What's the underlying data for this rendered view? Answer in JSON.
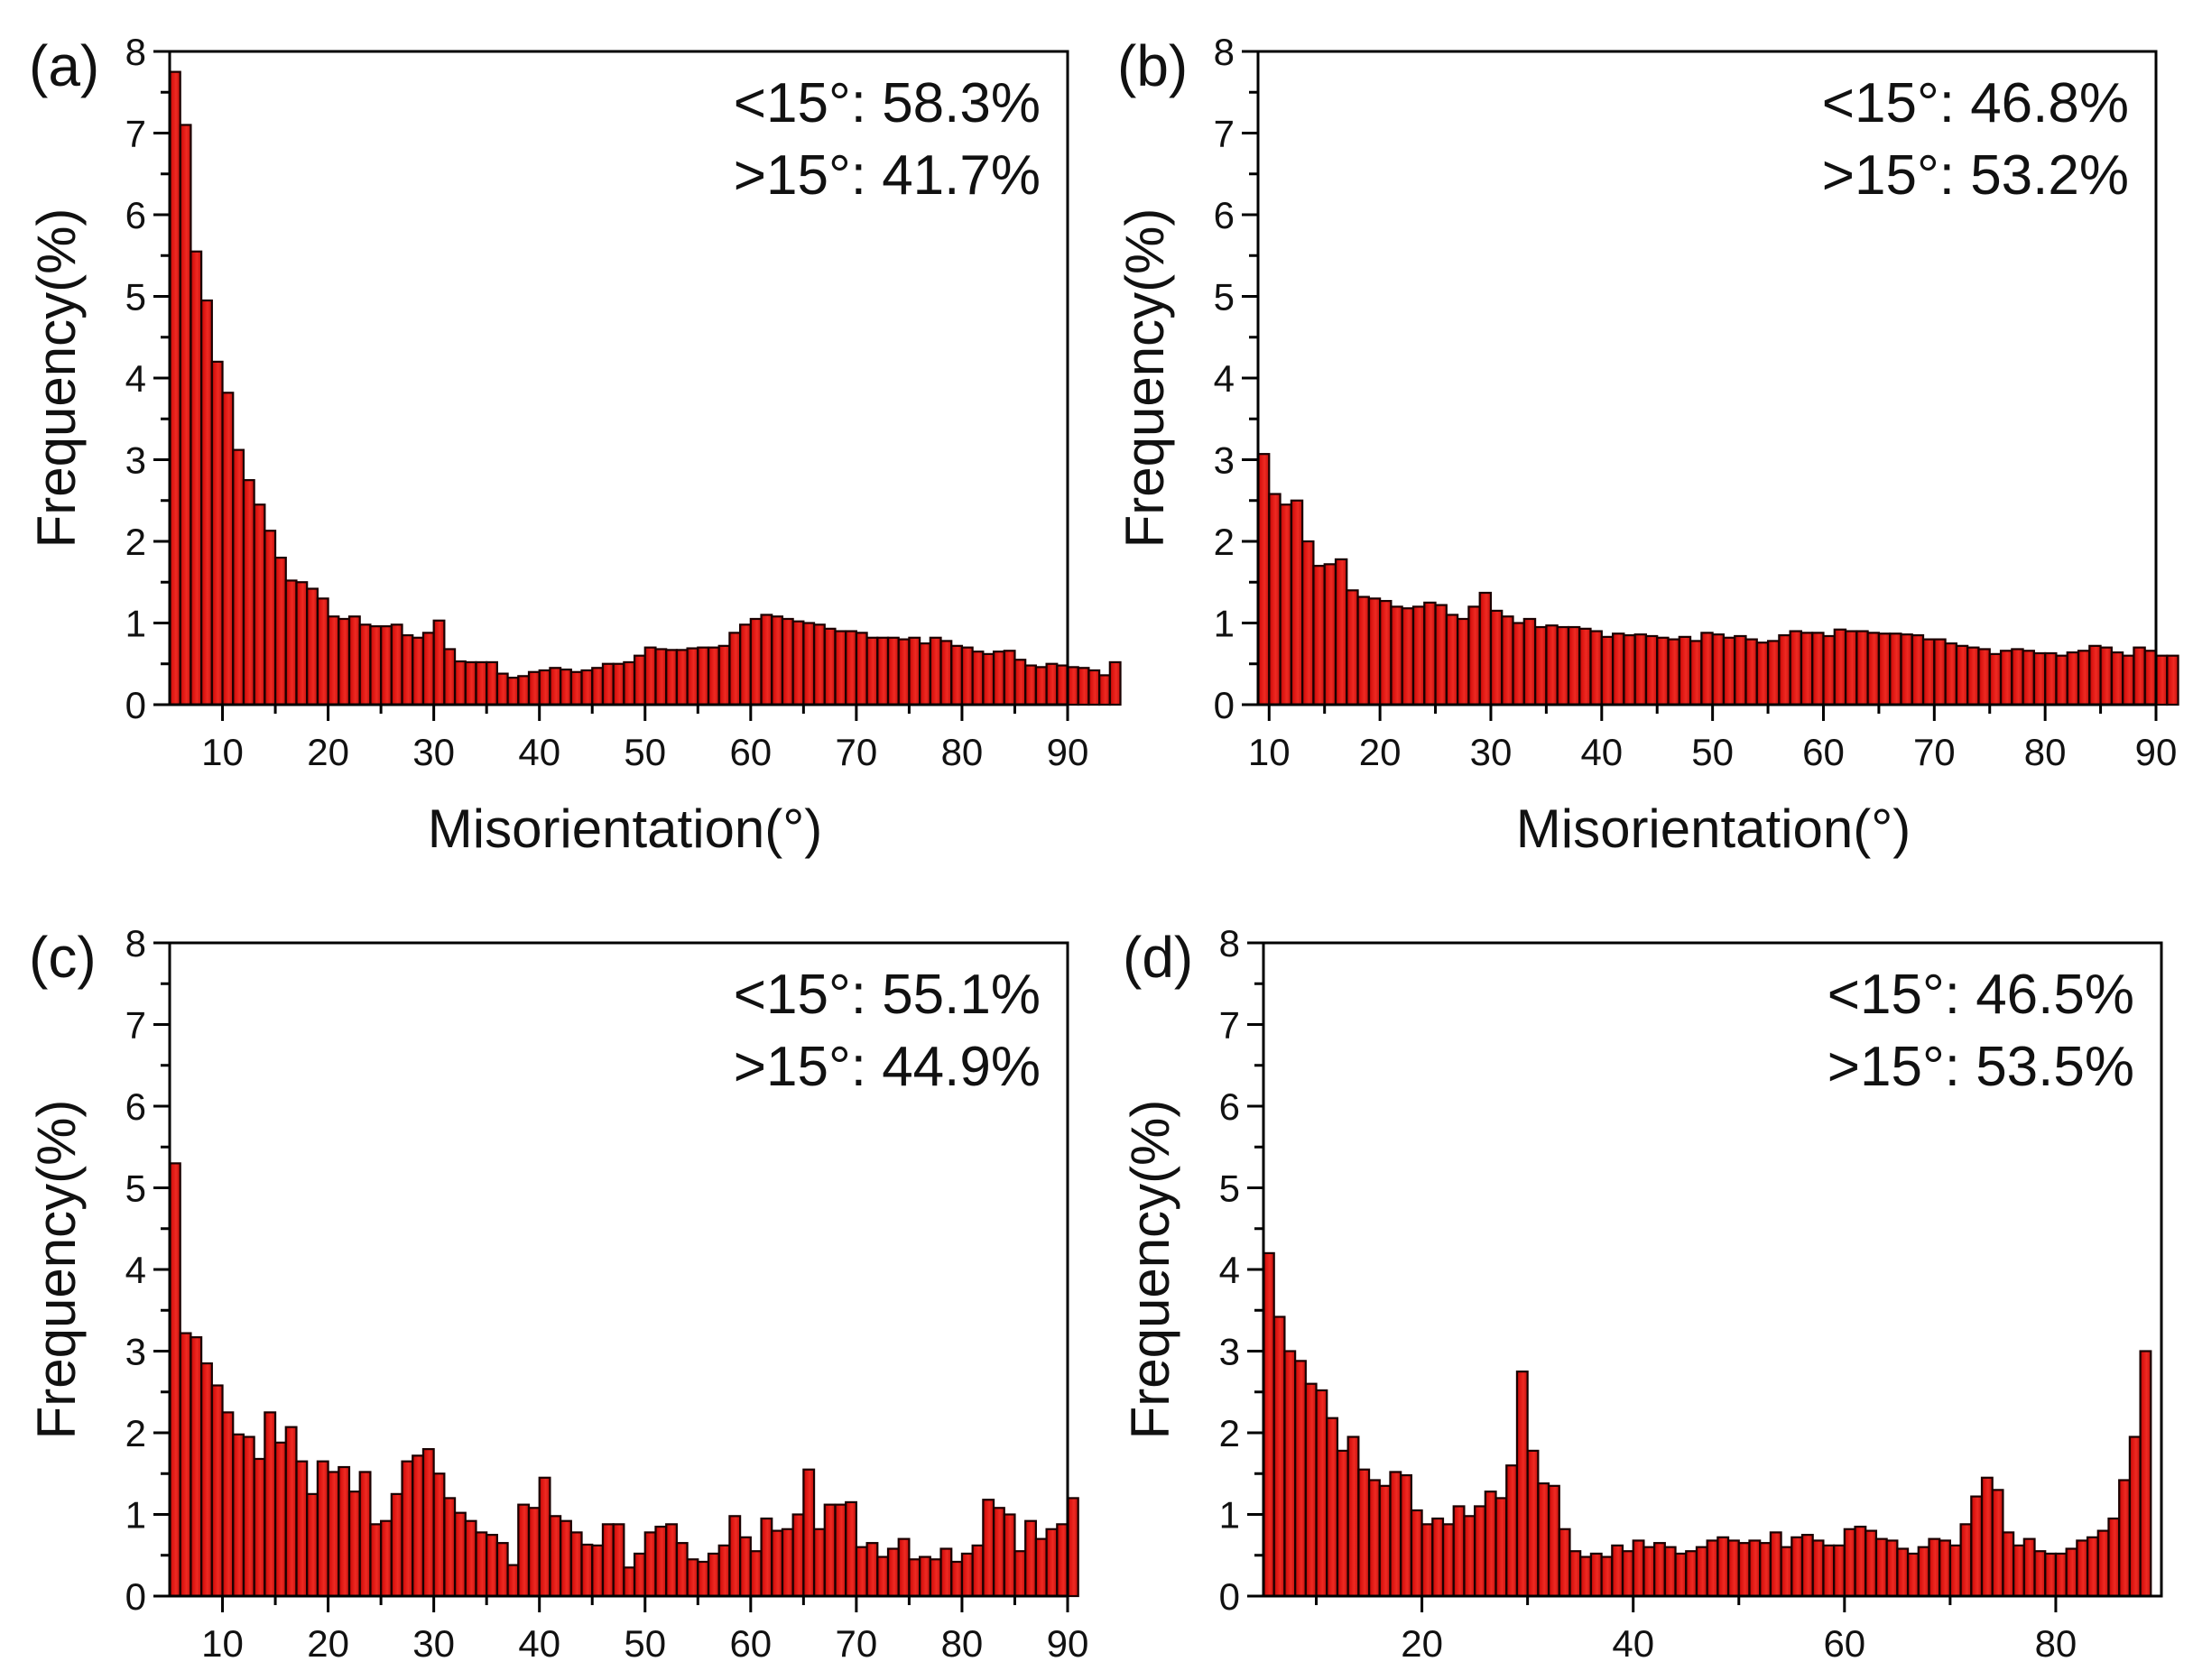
{
  "figure": {
    "bar_color": "#d9120f",
    "edge_color": "#1a0000"
  },
  "chart_data": [
    {
      "type": "bar",
      "panel": "(a)",
      "stats": [
        "<15°: 58.3%",
        ">15°: 41.7%"
      ],
      "xlabel": "Misorientation(°)",
      "ylabel": "Frequency(%)",
      "xlim": [
        5,
        90
      ],
      "ylim": [
        0,
        8
      ],
      "xticks": [
        10,
        20,
        30,
        40,
        50,
        60,
        70,
        80,
        90
      ],
      "yticks": [
        0,
        1,
        2,
        3,
        4,
        5,
        6,
        7,
        8
      ],
      "bin_start": 5,
      "bin_width": 1,
      "values": [
        7.75,
        7.1,
        5.55,
        4.95,
        4.2,
        3.82,
        3.12,
        2.75,
        2.45,
        2.13,
        1.8,
        1.52,
        1.5,
        1.42,
        1.3,
        1.08,
        1.05,
        1.08,
        0.98,
        0.96,
        0.96,
        0.98,
        0.85,
        0.82,
        0.88,
        1.03,
        0.68,
        0.53,
        0.52,
        0.52,
        0.52,
        0.38,
        0.33,
        0.35,
        0.4,
        0.42,
        0.45,
        0.43,
        0.4,
        0.42,
        0.45,
        0.5,
        0.5,
        0.52,
        0.6,
        0.7,
        0.68,
        0.67,
        0.67,
        0.69,
        0.7,
        0.7,
        0.72,
        0.88,
        0.98,
        1.05,
        1.1,
        1.08,
        1.05,
        1.02,
        1.0,
        0.98,
        0.93,
        0.9,
        0.9,
        0.88,
        0.82,
        0.82,
        0.82,
        0.8,
        0.82,
        0.75,
        0.82,
        0.78,
        0.72,
        0.7,
        0.65,
        0.62,
        0.65,
        0.66,
        0.55,
        0.48,
        0.46,
        0.5,
        0.48,
        0.46,
        0.45,
        0.42,
        0.36,
        0.52
      ]
    },
    {
      "type": "bar",
      "panel": "(b)",
      "stats": [
        "<15°: 46.8%",
        ">15°: 53.2%"
      ],
      "xlabel": "Misorientation(°)",
      "ylabel": "Frequency(%)",
      "xlim": [
        9,
        90
      ],
      "ylim": [
        0,
        8
      ],
      "xticks": [
        10,
        20,
        30,
        40,
        50,
        60,
        70,
        80,
        90
      ],
      "yticks": [
        0,
        1,
        2,
        3,
        4,
        5,
        6,
        7,
        8
      ],
      "bin_start": 9,
      "bin_width": 1,
      "values": [
        3.07,
        2.58,
        2.45,
        2.5,
        2.0,
        1.7,
        1.72,
        1.78,
        1.4,
        1.32,
        1.3,
        1.27,
        1.2,
        1.18,
        1.2,
        1.25,
        1.22,
        1.1,
        1.05,
        1.2,
        1.37,
        1.15,
        1.08,
        1.0,
        1.05,
        0.95,
        0.97,
        0.95,
        0.95,
        0.93,
        0.9,
        0.83,
        0.87,
        0.85,
        0.86,
        0.84,
        0.82,
        0.8,
        0.83,
        0.78,
        0.88,
        0.86,
        0.82,
        0.84,
        0.8,
        0.76,
        0.78,
        0.85,
        0.9,
        0.88,
        0.88,
        0.84,
        0.92,
        0.9,
        0.9,
        0.88,
        0.87,
        0.87,
        0.86,
        0.85,
        0.8,
        0.8,
        0.75,
        0.72,
        0.7,
        0.68,
        0.62,
        0.66,
        0.68,
        0.66,
        0.63,
        0.63,
        0.6,
        0.64,
        0.66,
        0.72,
        0.7,
        0.64,
        0.6,
        0.7,
        0.66,
        0.6,
        0.6
      ]
    },
    {
      "type": "bar",
      "panel": "(c)",
      "stats": [
        "<15°: 55.1%",
        ">15°: 44.9%"
      ],
      "xlabel": "",
      "ylabel": "Frequency(%)",
      "xlim": [
        5,
        90
      ],
      "ylim": [
        0,
        8
      ],
      "xticks": [
        10,
        20,
        30,
        40,
        50,
        60,
        70,
        80,
        90
      ],
      "yticks": [
        0,
        1,
        2,
        3,
        4,
        5,
        6,
        7,
        8
      ],
      "bin_start": 5,
      "bin_width": 1,
      "values": [
        5.3,
        3.22,
        3.17,
        2.85,
        2.58,
        2.25,
        1.98,
        1.95,
        1.68,
        2.25,
        1.88,
        2.07,
        1.65,
        1.25,
        1.65,
        1.52,
        1.58,
        1.28,
        1.52,
        0.88,
        0.92,
        1.25,
        1.65,
        1.72,
        1.8,
        1.5,
        1.2,
        1.02,
        0.92,
        0.78,
        0.75,
        0.65,
        0.38,
        1.12,
        1.08,
        1.45,
        0.98,
        0.92,
        0.78,
        0.63,
        0.62,
        0.88,
        0.88,
        0.35,
        0.52,
        0.78,
        0.85,
        0.88,
        0.65,
        0.45,
        0.42,
        0.52,
        0.62,
        0.98,
        0.72,
        0.55,
        0.95,
        0.8,
        0.82,
        1.0,
        1.55,
        0.82,
        1.12,
        1.12,
        1.15,
        0.6,
        0.65,
        0.48,
        0.58,
        0.7,
        0.45,
        0.48,
        0.45,
        0.58,
        0.42,
        0.52,
        0.62,
        1.18,
        1.08,
        1.0,
        0.55,
        0.92,
        0.7,
        0.82,
        0.88,
        1.2
      ]
    },
    {
      "type": "bar",
      "panel": "(d)",
      "stats": [
        "<15°: 46.5%",
        ">15°: 53.5%"
      ],
      "xlabel": "",
      "ylabel": "Frequency(%)",
      "xlim": [
        5,
        90
      ],
      "ylim": [
        0,
        8
      ],
      "xticks": [
        20,
        40,
        60,
        80
      ],
      "yticks": [
        0,
        1,
        2,
        3,
        4,
        5,
        6,
        7,
        8
      ],
      "bin_start": 5,
      "bin_width": 1,
      "values": [
        4.2,
        3.42,
        3.0,
        2.88,
        2.6,
        2.52,
        2.18,
        1.78,
        1.95,
        1.55,
        1.42,
        1.35,
        1.52,
        1.48,
        1.05,
        0.88,
        0.95,
        0.88,
        1.1,
        0.98,
        1.1,
        1.28,
        1.2,
        1.6,
        2.75,
        1.78,
        1.38,
        1.35,
        0.82,
        0.55,
        0.48,
        0.52,
        0.48,
        0.62,
        0.55,
        0.68,
        0.6,
        0.65,
        0.6,
        0.52,
        0.55,
        0.6,
        0.68,
        0.72,
        0.68,
        0.65,
        0.68,
        0.65,
        0.78,
        0.6,
        0.72,
        0.75,
        0.68,
        0.62,
        0.62,
        0.82,
        0.85,
        0.8,
        0.7,
        0.68,
        0.58,
        0.52,
        0.6,
        0.7,
        0.68,
        0.62,
        0.88,
        1.22,
        1.45,
        1.3,
        0.78,
        0.62,
        0.7,
        0.55,
        0.52,
        0.52,
        0.58,
        0.68,
        0.72,
        0.8,
        0.95,
        1.42,
        1.95,
        3.0
      ]
    }
  ]
}
